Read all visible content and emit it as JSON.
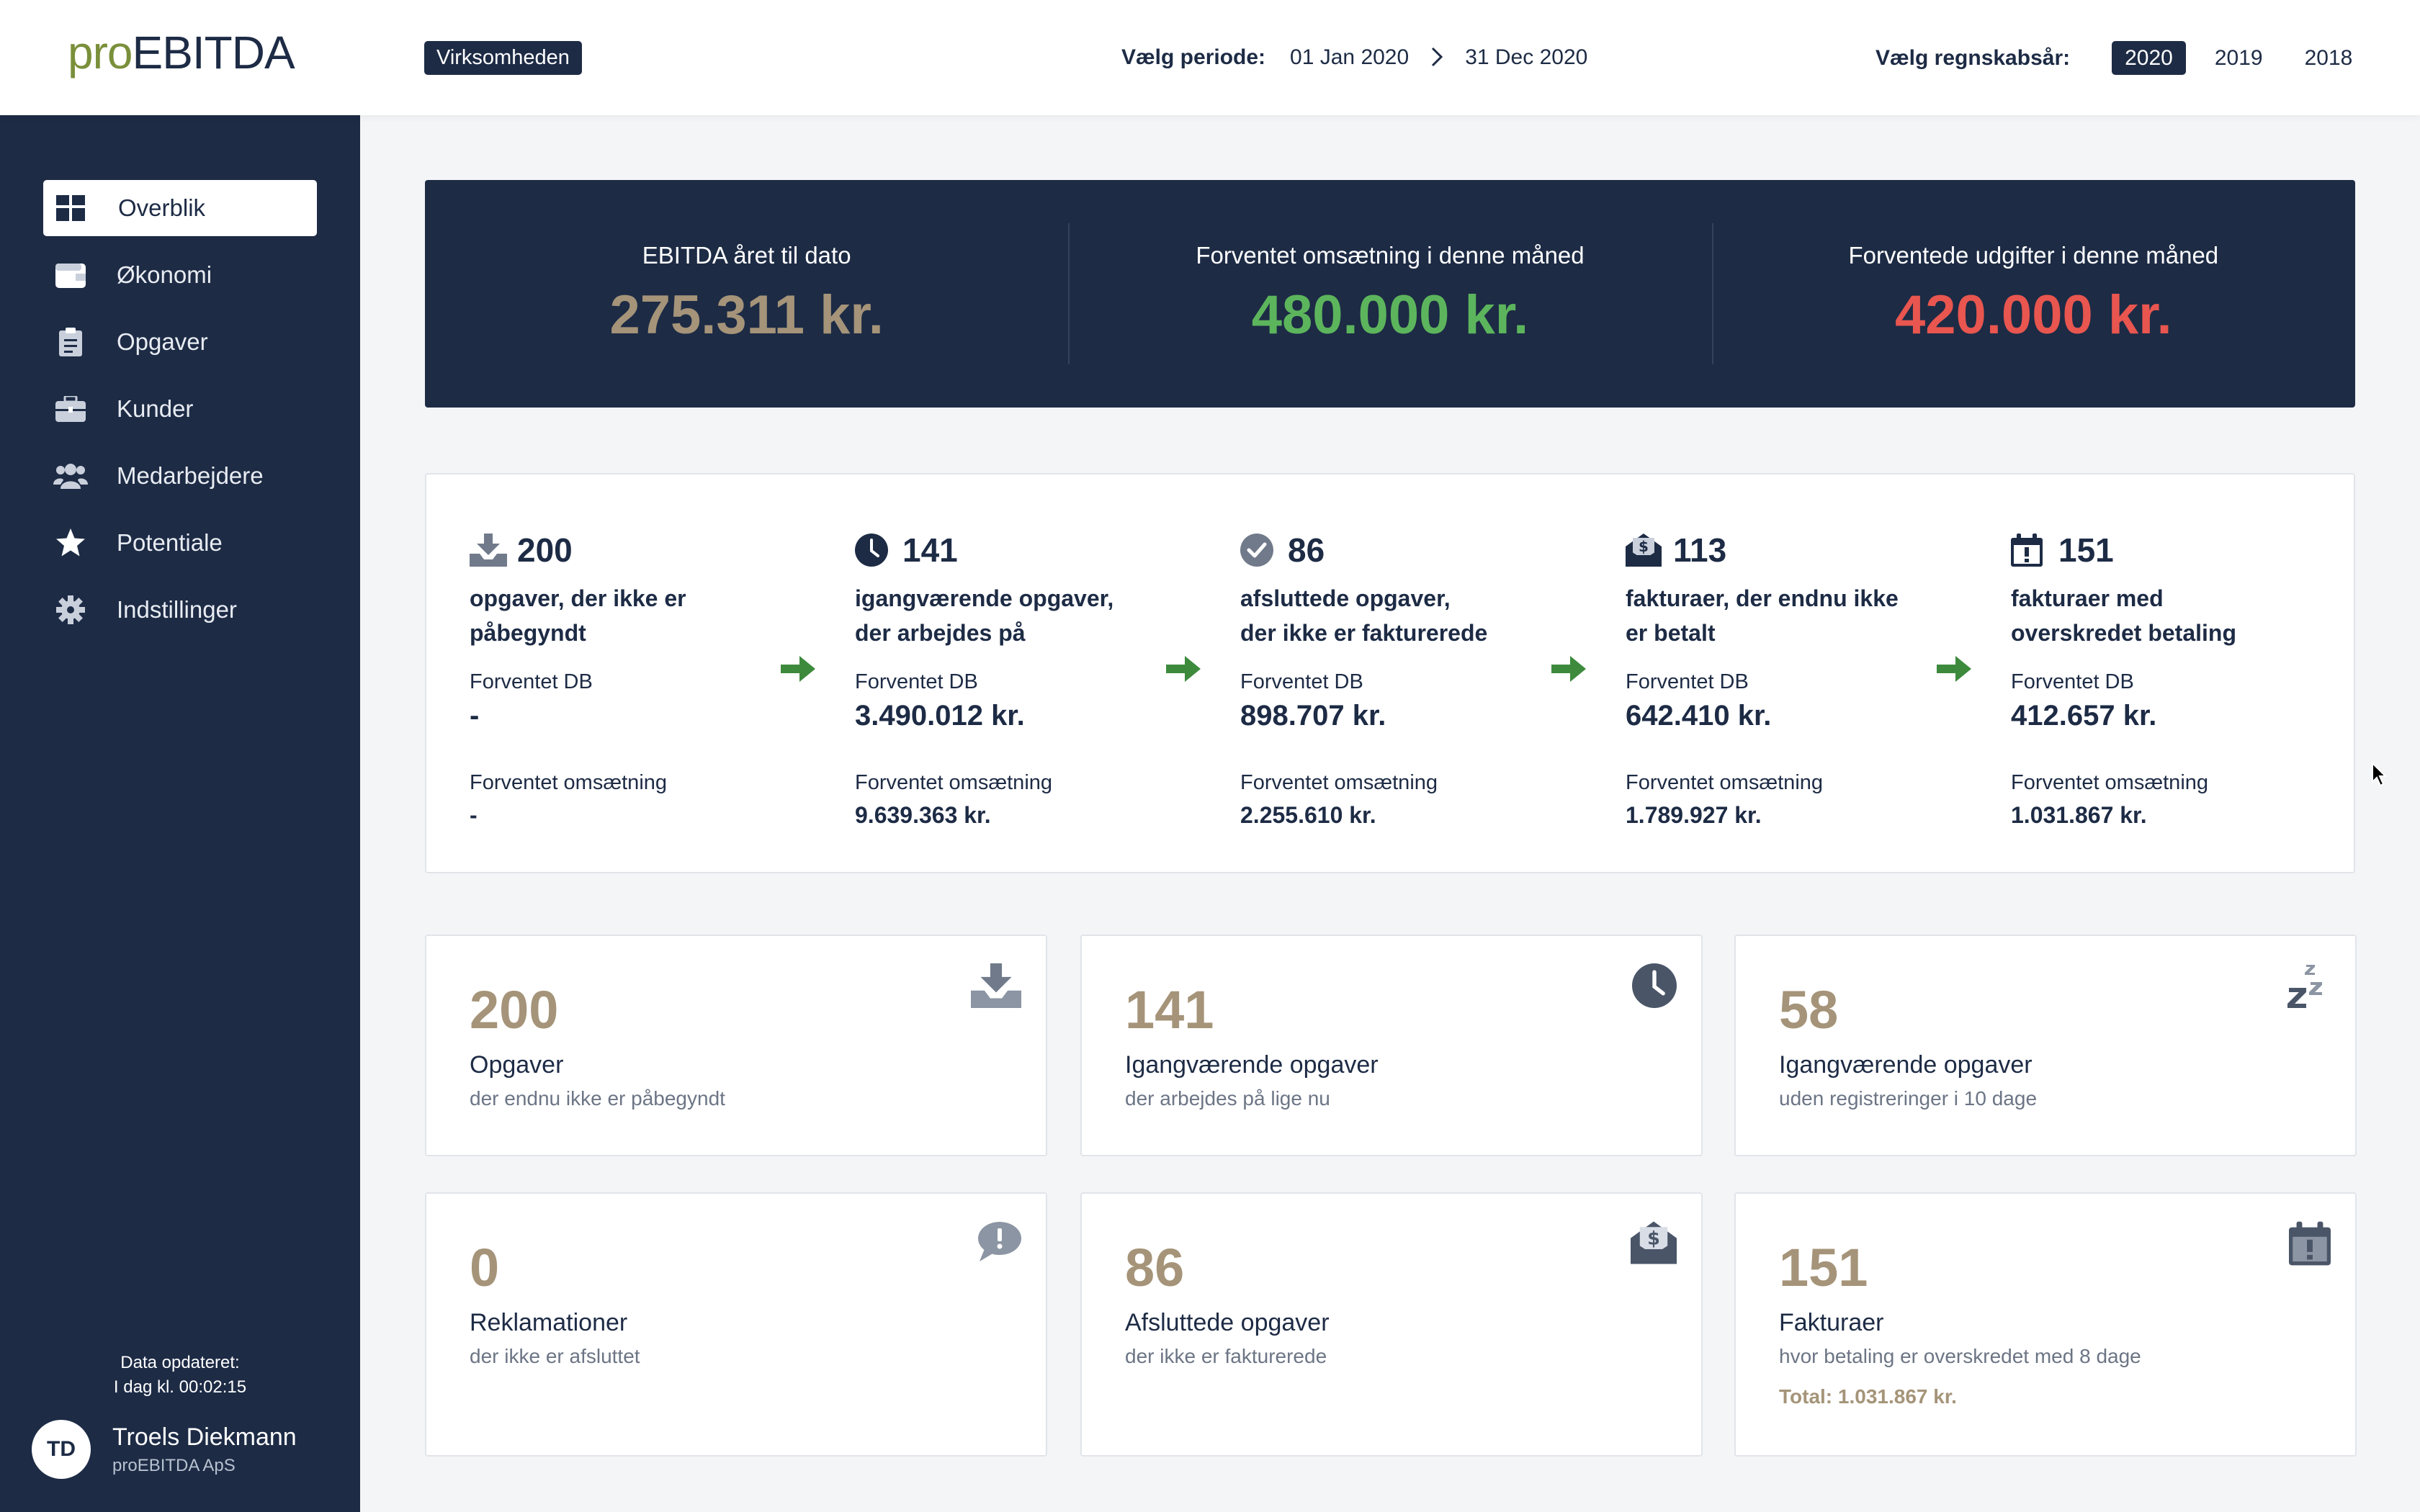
{
  "header": {
    "logo_pre": "pro",
    "logo_post": "EBITDA",
    "company": "Virksomheden",
    "period_label": "Vælg periode:",
    "period_start": "01 Jan 2020",
    "period_end": "31 Dec 2020",
    "year_label": "Vælg regnskabsår:",
    "years": [
      "2020",
      "2019",
      "2018"
    ],
    "active_year": "2020"
  },
  "sidebar": {
    "items": [
      {
        "label": "Overblik",
        "icon": "dashboard-icon",
        "active": true
      },
      {
        "label": "Økonomi",
        "icon": "wallet-icon"
      },
      {
        "label": "Opgaver",
        "icon": "clipboard-icon"
      },
      {
        "label": "Kunder",
        "icon": "briefcase-icon"
      },
      {
        "label": "Medarbejdere",
        "icon": "users-icon"
      },
      {
        "label": "Potentiale",
        "icon": "star-icon"
      },
      {
        "label": "Indstillinger",
        "icon": "gear-icon"
      }
    ],
    "updated_label": "Data opdateret:",
    "updated_value": "I dag kl. 00:02:15",
    "user": {
      "initials": "TD",
      "name": "Troels Diekmann",
      "company": "proEBITDA ApS"
    }
  },
  "kpi": [
    {
      "label": "EBITDA året til dato",
      "value": "275.311 kr.",
      "color": "#a59479"
    },
    {
      "label": "Forventet omsætning i denne måned",
      "value": "480.000 kr.",
      "color": "#5cb55c"
    },
    {
      "label": "Forventede udgifter i denne måned",
      "value": "420.000 kr.",
      "color": "#e8564f"
    }
  ],
  "pipeline": {
    "db_label": "Forventet DB",
    "oms_label": "Forventet omsætning",
    "steps": [
      {
        "icon": "inbox-download-icon",
        "count": "200",
        "title1": "opgaver, der ikke er",
        "title2": "påbegyndt",
        "db": "-",
        "oms": "-"
      },
      {
        "icon": "clock-icon",
        "count": "141",
        "title1": "igangværende opgaver,",
        "title2": "der arbejdes på",
        "db": "3.490.012 kr.",
        "oms": "9.639.363 kr."
      },
      {
        "icon": "check-circle-icon",
        "count": "86",
        "title1": "afsluttede opgaver,",
        "title2": "der ikke er fakturerede",
        "db": "898.707 kr.",
        "oms": "2.255.610 kr."
      },
      {
        "icon": "money-envelope-icon",
        "count": "113",
        "title1": "fakturaer, der endnu ikke",
        "title2": "er betalt",
        "db": "642.410 kr.",
        "oms": "1.789.927 kr."
      },
      {
        "icon": "calendar-alert-icon",
        "count": "151",
        "title1": "fakturaer med",
        "title2": "overskredet betaling",
        "db": "412.657 kr.",
        "oms": "1.031.867 kr."
      }
    ]
  },
  "cards": [
    {
      "icon": "inbox-download-icon",
      "num": "200",
      "title": "Opgaver",
      "sub": "der endnu ikke er påbegyndt"
    },
    {
      "icon": "clock-icon",
      "num": "141",
      "title": "Igangværende opgaver",
      "sub": "der arbejdes på lige nu"
    },
    {
      "icon": "sleep-icon",
      "num": "58",
      "title": "Igangværende opgaver",
      "sub": "uden registreringer i 10 dage"
    },
    {
      "icon": "comment-alert-icon",
      "num": "0",
      "title": "Reklamationer",
      "sub": "der ikke er afsluttet"
    },
    {
      "icon": "money-envelope-icon",
      "num": "86",
      "title": "Afsluttede opgaver",
      "sub": "der ikke er fakturerede"
    },
    {
      "icon": "calendar-alert-icon",
      "num": "151",
      "title": "Fakturaer",
      "sub": "hvor betaling er overskredet med 8 dage",
      "total": "Total: 1.031.867 kr."
    }
  ]
}
